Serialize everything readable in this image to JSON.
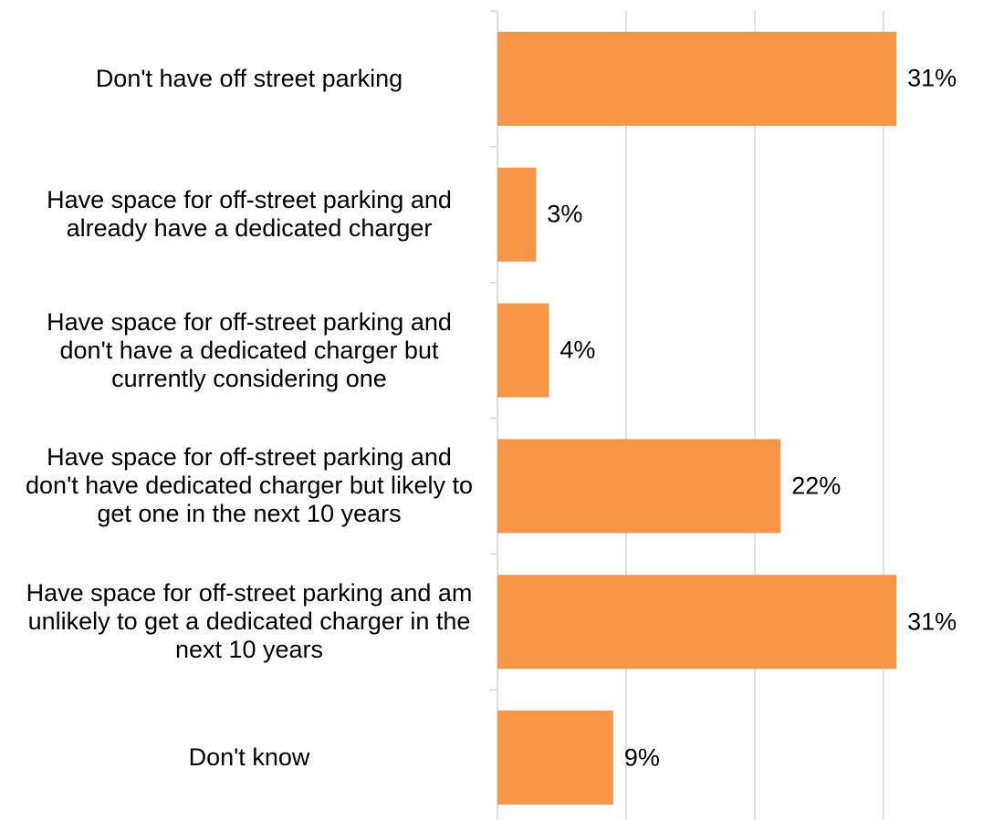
{
  "chart_data": {
    "type": "barh",
    "categories": [
      "Don't have off street parking",
      "Have space for off-street parking and already have a dedicated charger",
      "Have space for off-street parking and don't have a dedicated charger but currently considering one",
      "Have space for off-street parking and don't have dedicated charger but likely to get one in the next 10 years",
      "Have space for off-street parking and am unlikely to get a dedicated charger in the next 10 years",
      "Don't know"
    ],
    "values": [
      31,
      3,
      4,
      22,
      31,
      9
    ],
    "value_labels": [
      "31%",
      "3%",
      "4%",
      "22%",
      "31%",
      "9%"
    ],
    "color": "#f79646",
    "xlim": [
      0,
      35
    ],
    "xticks": [
      0,
      10,
      20,
      30
    ],
    "grid": true
  }
}
